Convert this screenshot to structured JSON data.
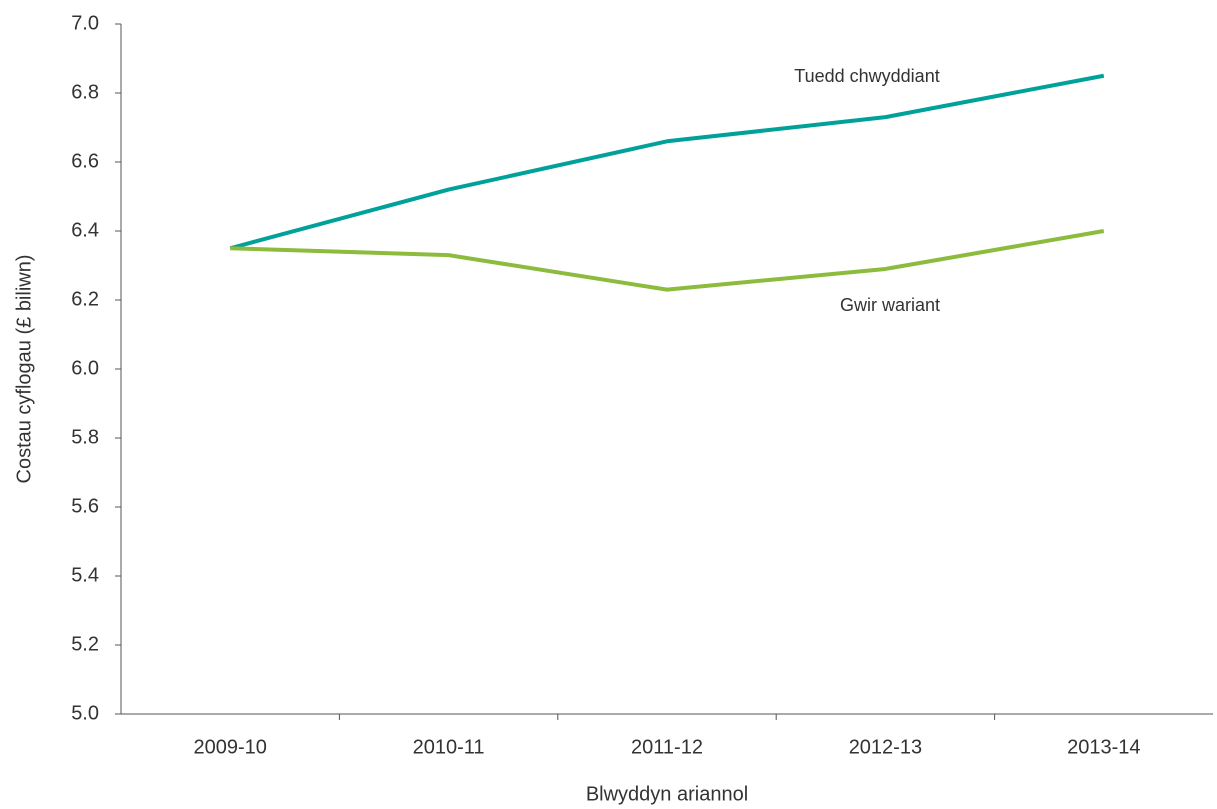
{
  "chart_data": {
    "type": "line",
    "y_label": "Costau cyflogau (£ biliwn)",
    "x_label": "Blwyddyn ariannol",
    "categories": [
      "2009-10",
      "2010-11",
      "2011-12",
      "2012-13",
      "2013-14"
    ],
    "series": [
      {
        "name": "Tuedd chwyddiant",
        "color": "#00a19a",
        "values": [
          6.35,
          6.52,
          6.66,
          6.73,
          6.85
        ]
      },
      {
        "name": "Gwir wariant",
        "color": "#8cbb3e",
        "values": [
          6.35,
          6.33,
          6.23,
          6.29,
          6.4
        ]
      }
    ],
    "ylim": [
      5,
      7
    ],
    "yticks": [
      {
        "value": 5,
        "label": "5.0"
      },
      5.2,
      5.4,
      5.6,
      5.8,
      {
        "value": 6,
        "label": "6.0"
      },
      6.2,
      6.4,
      6.6,
      6.8,
      {
        "value": 7,
        "label": "7.0"
      }
    ]
  }
}
